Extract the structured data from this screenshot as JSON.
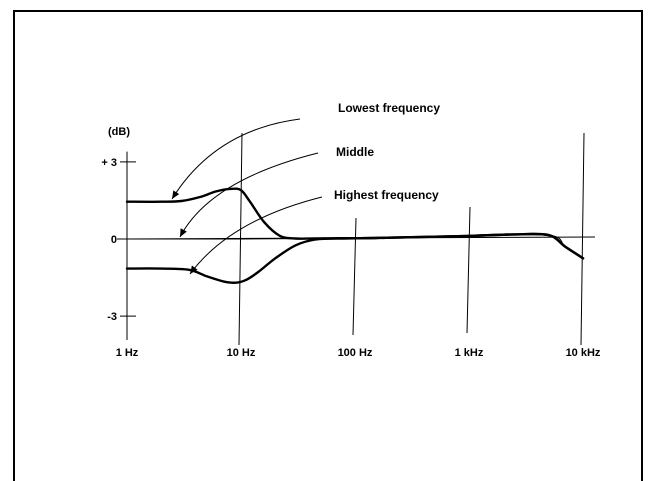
{
  "chart_data": {
    "type": "line",
    "title": "",
    "xlabel": "",
    "ylabel": "(dB)",
    "x_scale": "log",
    "xlim": [
      1,
      10000
    ],
    "ylim": [
      -3,
      3
    ],
    "x_ticks": [
      {
        "value": 1,
        "label": "1 Hz"
      },
      {
        "value": 10,
        "label": "10 Hz"
      },
      {
        "value": 100,
        "label": "100 Hz"
      },
      {
        "value": 1000,
        "label": "1 kHz"
      },
      {
        "value": 10000,
        "label": "10 kHz"
      }
    ],
    "y_ticks": [
      {
        "value": 3,
        "label": "+ 3"
      },
      {
        "value": 0,
        "label": "0"
      },
      {
        "value": -3,
        "label": "-3"
      }
    ],
    "series": [
      {
        "name": "Lowest frequency",
        "x": [
          1,
          2,
          3,
          4.5,
          6,
          8,
          10,
          12,
          16,
          22,
          30,
          45,
          80,
          150,
          1000,
          2500,
          5000,
          7000,
          10000
        ],
        "y": [
          1.45,
          1.45,
          1.48,
          1.65,
          1.85,
          1.95,
          1.9,
          1.45,
          0.65,
          0.12,
          0.02,
          0.02,
          0.03,
          0.04,
          0.12,
          0.18,
          0.15,
          -0.3,
          -0.75
        ]
      },
      {
        "name": "Middle",
        "x": [
          1,
          10,
          100,
          1000,
          5000,
          7000,
          10000
        ],
        "y": [
          0,
          0,
          0.03,
          0.12,
          0.15,
          -0.3,
          -0.75
        ]
      },
      {
        "name": "Highest frequency",
        "x": [
          1,
          2,
          3.5,
          5,
          7,
          9,
          11,
          14,
          20,
          30,
          45,
          80,
          150,
          1000,
          2500,
          5000,
          7000,
          10000
        ],
        "y": [
          -1.15,
          -1.15,
          -1.2,
          -1.45,
          -1.65,
          -1.7,
          -1.6,
          -1.3,
          -0.75,
          -0.25,
          -0.02,
          0.02,
          0.04,
          0.12,
          0.18,
          0.15,
          -0.3,
          -0.75
        ]
      }
    ],
    "annotations": [
      {
        "text": "Lowest frequency",
        "series": "Lowest frequency"
      },
      {
        "text": "Middle",
        "series": "Middle"
      },
      {
        "text": "Highest frequency",
        "series": "Highest frequency"
      }
    ],
    "grid": false,
    "legend": "none",
    "line_color": "#000000"
  }
}
